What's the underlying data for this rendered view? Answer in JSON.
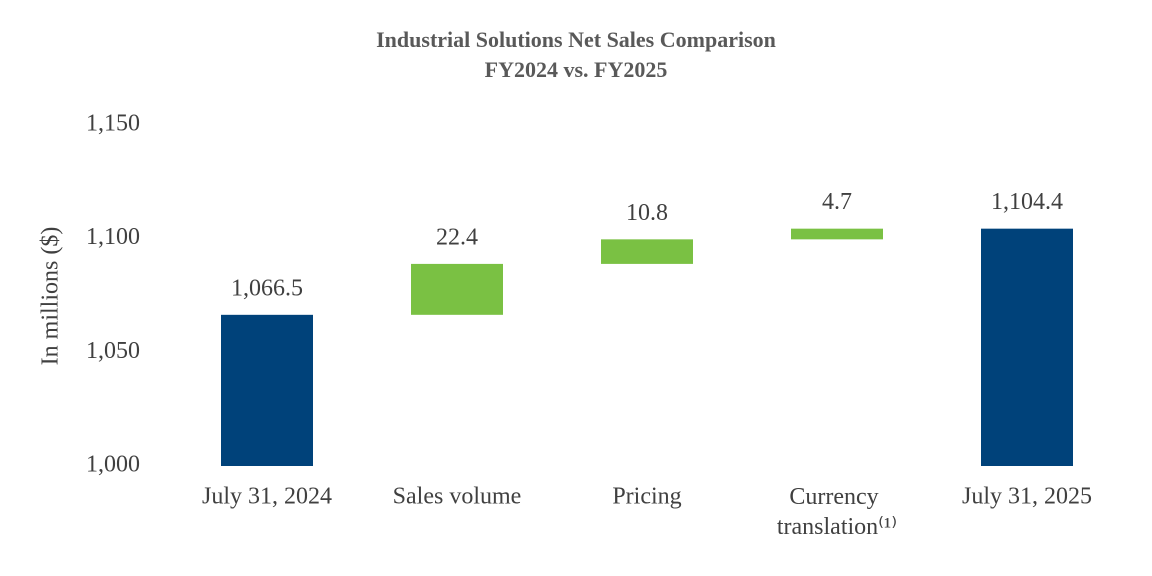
{
  "chart_data": {
    "type": "waterfall",
    "title": "Industrial Solutions Net Sales Comparison",
    "subtitle": "FY2024 vs. FY2025",
    "y_label": "In millions ($)",
    "categories": [
      "July 31, 2024",
      "Sales volume",
      "Pricing",
      "Currency translation⁽¹⁾",
      "July 31, 2025"
    ],
    "values": [
      1066.5,
      22.4,
      10.8,
      4.7,
      1104.4
    ],
    "value_labels": [
      "1,066.5",
      "22.4",
      "10.8",
      "4.7",
      "1,104.4"
    ],
    "measure": [
      "total",
      "increase",
      "increase",
      "increase",
      "total"
    ],
    "colors": {
      "total": "#00427a",
      "increase": "#7ac143"
    },
    "ylim": [
      1000,
      1150
    ],
    "yticks": [
      {
        "value": 1000,
        "label": "1,000"
      },
      {
        "value": 1050,
        "label": "1,050"
      },
      {
        "value": 1100,
        "label": "1,100"
      },
      {
        "value": 1150,
        "label": "1,150"
      }
    ],
    "grid": false
  }
}
